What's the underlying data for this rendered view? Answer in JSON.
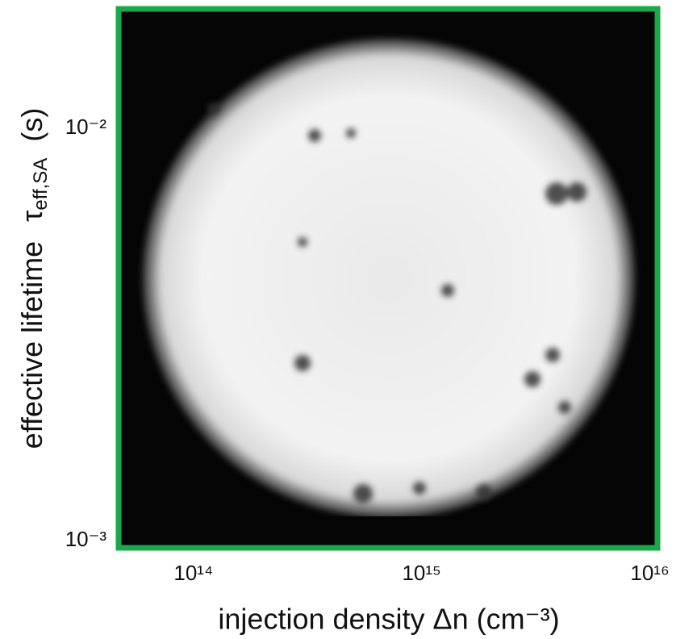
{
  "chart_data": {
    "type": "image",
    "xlabel": "injection density Δn (cm⁻³)",
    "ylabel": [
      "effective lifetime",
      "τ",
      "eff,SA",
      "(s)"
    ],
    "xscale": "log",
    "yscale": "log",
    "xlim": [
      47000000000000.0,
      1.08e+16
    ],
    "ylim": [
      0.00096,
      0.0195
    ],
    "xticks": [
      {
        "value": 100000000000000.0,
        "label": "10¹⁴"
      },
      {
        "value": 1000000000000000.0,
        "label": "10¹⁵"
      },
      {
        "value": 1e+16,
        "label": "10¹⁶"
      }
    ],
    "yticks": [
      {
        "value": 0.001,
        "label": "10⁻³"
      },
      {
        "value": 0.01,
        "label": "10⁻²"
      }
    ],
    "frame_color": "#1aa84a"
  }
}
